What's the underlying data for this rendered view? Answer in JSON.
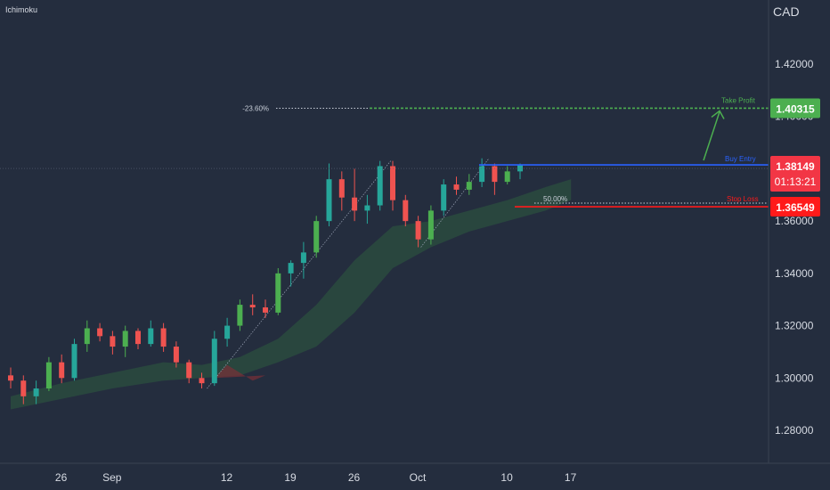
{
  "indicator_label": "Ichimoku",
  "currency_label": "CAD",
  "chart_data": {
    "type": "candlestick",
    "ylim": [
      1.268,
      1.452
    ],
    "y_ticks": [
      "1.42000",
      "1.40000",
      "1.38000",
      "1.36000",
      "1.34000",
      "1.32000",
      "1.30000",
      "1.28000"
    ],
    "x_ticks": [
      {
        "label": "26",
        "bar": 2
      },
      {
        "label": "Sep",
        "bar": 6
      },
      {
        "label": "12",
        "bar": 15
      },
      {
        "label": "19",
        "bar": 20
      },
      {
        "label": "26",
        "bar": 25
      },
      {
        "label": "Oct",
        "bar": 30
      },
      {
        "label": "10",
        "bar": 37
      },
      {
        "label": "17",
        "bar": 42
      }
    ],
    "bar_count": 44,
    "candles": [
      [
        1.301,
        1.304,
        1.296,
        1.299
      ],
      [
        1.299,
        1.301,
        1.29,
        1.293
      ],
      [
        1.293,
        1.299,
        1.29,
        1.296
      ],
      [
        1.296,
        1.308,
        1.295,
        1.306
      ],
      [
        1.306,
        1.309,
        1.298,
        1.3
      ],
      [
        1.3,
        1.315,
        1.299,
        1.313
      ],
      [
        1.313,
        1.322,
        1.31,
        1.319
      ],
      [
        1.319,
        1.321,
        1.314,
        1.316
      ],
      [
        1.316,
        1.318,
        1.309,
        1.312
      ],
      [
        1.312,
        1.32,
        1.308,
        1.318
      ],
      [
        1.318,
        1.319,
        1.311,
        1.313
      ],
      [
        1.313,
        1.322,
        1.312,
        1.319
      ],
      [
        1.319,
        1.321,
        1.31,
        1.312
      ],
      [
        1.312,
        1.314,
        1.304,
        1.306
      ],
      [
        1.306,
        1.307,
        1.298,
        1.3
      ],
      [
        1.3,
        1.302,
        1.296,
        1.298
      ],
      [
        1.298,
        1.318,
        1.297,
        1.315
      ],
      [
        1.315,
        1.323,
        1.312,
        1.32
      ],
      [
        1.32,
        1.33,
        1.318,
        1.328
      ],
      [
        1.328,
        1.332,
        1.324,
        1.327
      ],
      [
        1.327,
        1.33,
        1.323,
        1.325
      ],
      [
        1.325,
        1.342,
        1.324,
        1.34
      ],
      [
        1.34,
        1.345,
        1.335,
        1.344
      ],
      [
        1.344,
        1.352,
        1.338,
        1.348
      ],
      [
        1.348,
        1.362,
        1.346,
        1.36
      ],
      [
        1.36,
        1.382,
        1.358,
        1.376
      ],
      [
        1.376,
        1.379,
        1.364,
        1.369
      ],
      [
        1.369,
        1.38,
        1.36,
        1.364
      ],
      [
        1.364,
        1.37,
        1.359,
        1.366
      ],
      [
        1.366,
        1.383,
        1.364,
        1.381
      ],
      [
        1.381,
        1.383,
        1.364,
        1.368
      ],
      [
        1.368,
        1.37,
        1.358,
        1.36
      ],
      [
        1.36,
        1.362,
        1.35,
        1.353
      ],
      [
        1.353,
        1.366,
        1.351,
        1.364
      ],
      [
        1.364,
        1.376,
        1.362,
        1.374
      ],
      [
        1.374,
        1.377,
        1.37,
        1.372
      ],
      [
        1.372,
        1.378,
        1.37,
        1.375
      ],
      [
        1.375,
        1.384,
        1.373,
        1.381
      ],
      [
        1.381,
        1.382,
        1.37,
        1.375
      ],
      [
        1.375,
        1.381,
        1.374,
        1.379
      ],
      [
        1.379,
        1.382,
        1.376,
        1.3815
      ]
    ],
    "cloud_upper": [
      [
        0,
        1.293
      ],
      [
        4,
        1.298
      ],
      [
        8,
        1.302
      ],
      [
        12,
        1.306
      ],
      [
        15,
        1.305
      ],
      [
        18,
        1.308
      ],
      [
        21,
        1.315
      ],
      [
        24,
        1.328
      ],
      [
        27,
        1.345
      ],
      [
        30,
        1.358
      ],
      [
        33,
        1.36
      ],
      [
        36,
        1.364
      ],
      [
        39,
        1.368
      ],
      [
        42,
        1.373
      ],
      [
        44,
        1.376
      ]
    ],
    "cloud_lower": [
      [
        0,
        1.288
      ],
      [
        4,
        1.292
      ],
      [
        8,
        1.296
      ],
      [
        12,
        1.299
      ],
      [
        15,
        1.3
      ],
      [
        18,
        1.301
      ],
      [
        21,
        1.306
      ],
      [
        24,
        1.312
      ],
      [
        27,
        1.325
      ],
      [
        30,
        1.342
      ],
      [
        33,
        1.35
      ],
      [
        36,
        1.356
      ],
      [
        39,
        1.36
      ],
      [
        42,
        1.364
      ],
      [
        44,
        1.368
      ]
    ],
    "red_cloud_segment": [
      [
        16,
        1.3
      ],
      [
        17,
        1.305
      ],
      [
        18,
        1.302
      ],
      [
        19,
        1.299
      ],
      [
        20,
        1.301
      ],
      [
        16,
        1.3
      ]
    ],
    "levels": [
      {
        "name": "Take Profit",
        "value": 1.40315,
        "label": "1.40315",
        "color": "#4caf50",
        "fib": "-23.60%"
      },
      {
        "name": "Buy Entry",
        "value": 1.38149,
        "label": "1.38149",
        "color": "#2962ff"
      },
      {
        "name": "Stop Loss",
        "value": 1.36549,
        "label": "1.36549",
        "color": "#ff1a1a",
        "fib": "50.00%"
      }
    ],
    "current_price": {
      "label": "1.38149",
      "countdown": "01:13:21",
      "color": "#f23645"
    },
    "up_color": "#26a69a",
    "up_color_alt": "#4caf50",
    "down_color": "#ef5350"
  }
}
